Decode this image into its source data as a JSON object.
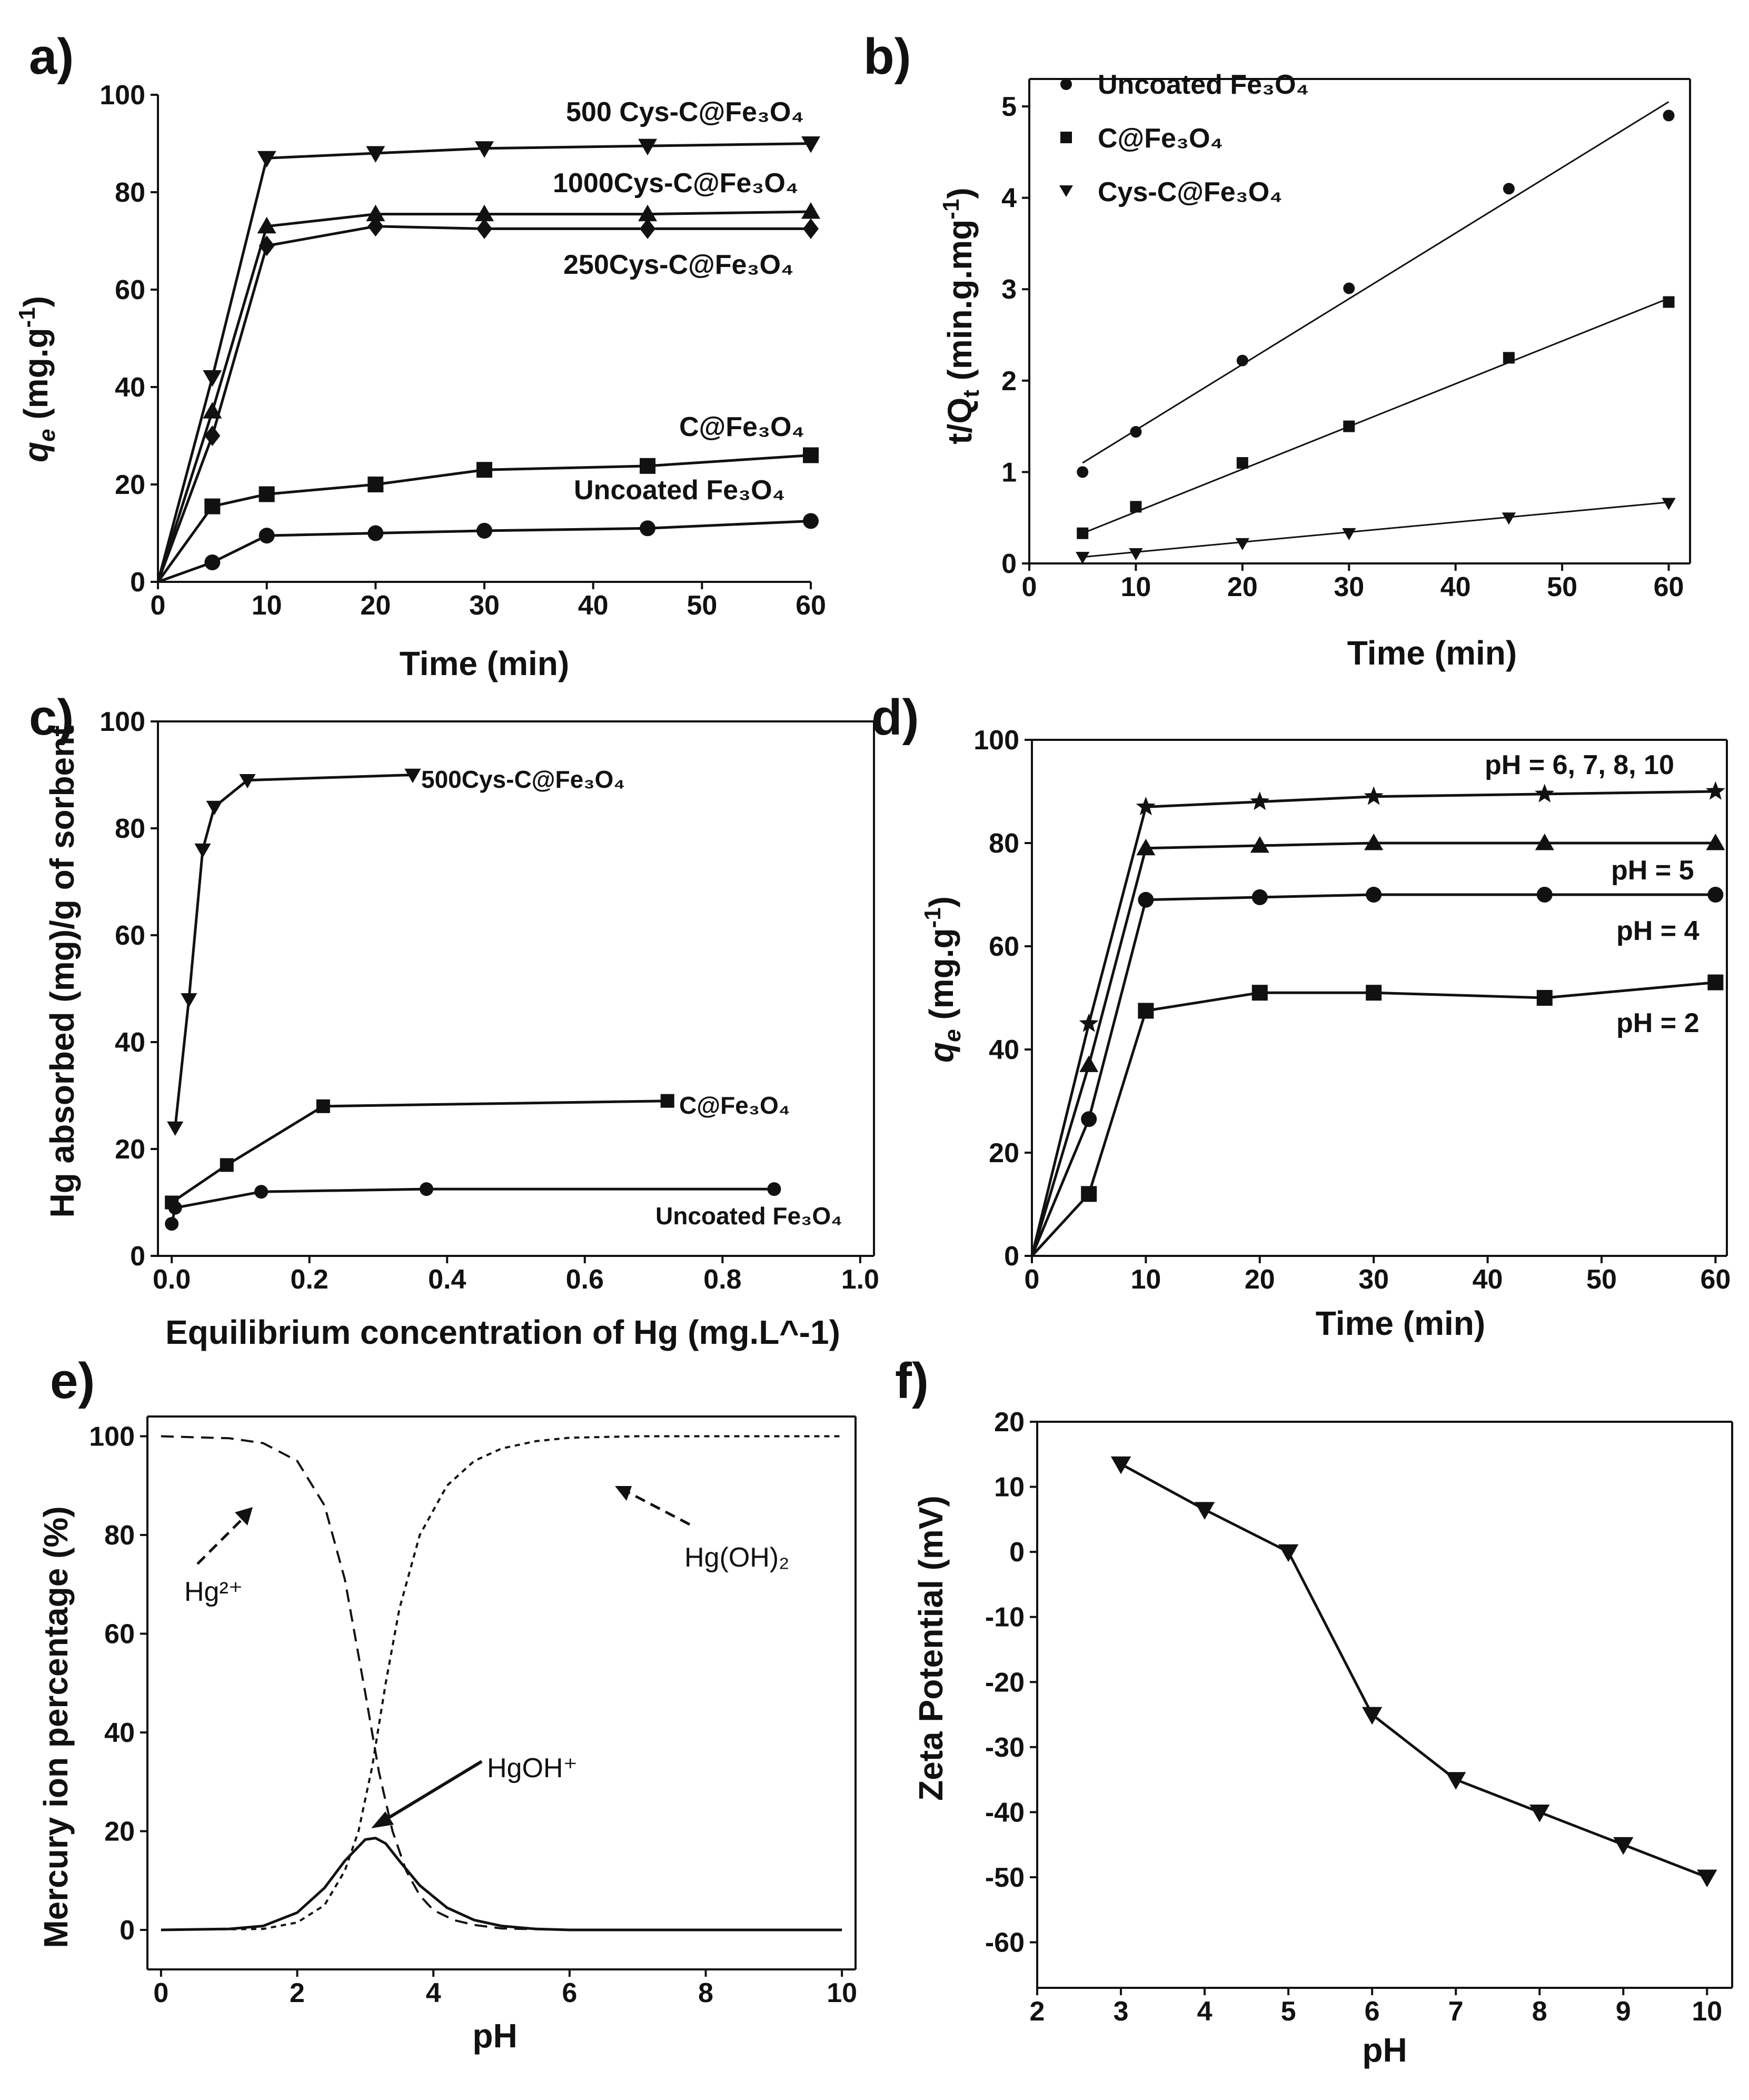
{
  "colors": {
    "background": "#ffffff",
    "ink": "#111111"
  },
  "chart_data": [
    {
      "id": "a",
      "panel_label": "a)",
      "type": "line",
      "xlabel": "Time (min)",
      "ylabel": "q_e (mg.g^-1)",
      "xlim": [
        0,
        60
      ],
      "ylim": [
        0,
        100
      ],
      "x_ticks": [
        0,
        10,
        20,
        30,
        40,
        50,
        60
      ],
      "y_ticks": [
        0,
        20,
        40,
        60,
        80,
        100
      ],
      "x": [
        0,
        5,
        10,
        20,
        30,
        45,
        60
      ],
      "series": [
        {
          "name": "500 Cys-C@Fe3O4",
          "label": "500 Cys-C@Fe₃O₄",
          "marker": "tri-down",
          "values": [
            0,
            42,
            87,
            88,
            89,
            89.5,
            90
          ]
        },
        {
          "name": "1000Cys-C@Fe3O4",
          "label": "1000Cys-C@Fe₃O₄",
          "marker": "tri-up",
          "values": [
            0,
            35,
            73,
            75.5,
            75.5,
            75.5,
            76
          ]
        },
        {
          "name": "250Cys-C@Fe3O4",
          "label": "250Cys-C@Fe₃O₄",
          "marker": "diamond",
          "values": [
            0,
            30,
            69,
            73,
            72.5,
            72.5,
            72.5
          ]
        },
        {
          "name": "C@Fe3O4",
          "label": "C@Fe₃O₄",
          "marker": "square",
          "values": [
            0,
            15.5,
            18,
            20,
            23,
            23.8,
            26
          ]
        },
        {
          "name": "Uncoated Fe3O4",
          "label": "Uncoated Fe₃O₄",
          "marker": "circle",
          "values": [
            0,
            4,
            9.5,
            10,
            10.5,
            11,
            12.5
          ]
        }
      ]
    },
    {
      "id": "b",
      "panel_label": "b)",
      "type": "scatter",
      "xlabel": "Time (min)",
      "ylabel": "t/Q_t (min.g.mg^-1)",
      "xlim": [
        0,
        62
      ],
      "ylim": [
        0,
        5.3
      ],
      "x_ticks": [
        0,
        10,
        20,
        30,
        40,
        50,
        60
      ],
      "y_ticks": [
        0,
        1,
        2,
        3,
        4,
        5
      ],
      "x": [
        5,
        10,
        20,
        30,
        45,
        60
      ],
      "legend": [
        "Uncoated Fe₃O₄",
        "C@Fe₃O₄",
        "Cys-C@Fe₃O₄"
      ],
      "series": [
        {
          "name": "Uncoated Fe3O4",
          "marker": "circle",
          "values": [
            1.0,
            1.44,
            2.22,
            3.01,
            4.1,
            4.9
          ],
          "fit": [
            [
              5,
              1.1
            ],
            [
              60,
              5.05
            ]
          ]
        },
        {
          "name": "C@Fe3O4",
          "marker": "square",
          "values": [
            0.33,
            0.62,
            1.1,
            1.5,
            2.25,
            2.86
          ],
          "fit": [
            [
              5,
              0.33
            ],
            [
              60,
              2.9
            ]
          ]
        },
        {
          "name": "Cys-C@Fe3O4",
          "marker": "tri-down",
          "values": [
            0.07,
            0.11,
            0.22,
            0.33,
            0.5,
            0.66
          ],
          "fit": [
            [
              5,
              0.07
            ],
            [
              60,
              0.67
            ]
          ]
        }
      ]
    },
    {
      "id": "c",
      "panel_label": "c)",
      "type": "line",
      "xlabel": "Equilibrium concentration of Hg (mg.L^-1)",
      "ylabel": "Hg absorbed (mg)/g of sorbent",
      "xlim": [
        -0.02,
        1.02
      ],
      "ylim": [
        0,
        100
      ],
      "x_ticks": [
        0.0,
        0.2,
        0.4,
        0.6,
        0.8,
        1.0
      ],
      "x_tick_labels": [
        "0.0",
        "0.2",
        "0.4",
        "0.6",
        "0.8",
        "1.0"
      ],
      "y_ticks": [
        0,
        20,
        40,
        60,
        80,
        100
      ],
      "series": [
        {
          "name": "500Cys-C@Fe3O4",
          "label": "500Cys-C@Fe₃O₄",
          "marker": "tri-down",
          "x": [
            0.005,
            0.025,
            0.045,
            0.062,
            0.11,
            0.35
          ],
          "values": [
            24,
            48,
            76,
            84,
            89,
            90
          ]
        },
        {
          "name": "C@Fe3O4",
          "label": "C@Fe₃O₄",
          "marker": "square",
          "x": [
            0.0,
            0.08,
            0.22,
            0.72
          ],
          "values": [
            10,
            17,
            28,
            29
          ]
        },
        {
          "name": "Uncoated Fe3O4",
          "label": "Uncoated Fe₃O₄",
          "marker": "circle",
          "x": [
            0.0,
            0.005,
            0.13,
            0.37,
            0.875
          ],
          "values": [
            6,
            9,
            12,
            12.5,
            12.5
          ]
        }
      ]
    },
    {
      "id": "d",
      "panel_label": "d)",
      "type": "line",
      "xlabel": "Time (min)",
      "ylabel": "q_e (mg.g^-1)",
      "xlim": [
        0,
        61
      ],
      "ylim": [
        0,
        100
      ],
      "x_ticks": [
        0,
        10,
        20,
        30,
        40,
        50,
        60
      ],
      "y_ticks": [
        0,
        20,
        40,
        60,
        80,
        100
      ],
      "x": [
        0,
        5,
        10,
        20,
        30,
        45,
        60
      ],
      "series": [
        {
          "name": "pH = 6, 7, 8, 10",
          "label": "pH = 6, 7, 8, 10",
          "marker": "star",
          "values": [
            0,
            45,
            87,
            88,
            89,
            89.5,
            90
          ]
        },
        {
          "name": "pH = 5",
          "label": "pH = 5",
          "marker": "tri-up",
          "values": [
            0,
            37,
            79,
            79.5,
            80,
            80,
            80
          ]
        },
        {
          "name": "pH = 4",
          "label": "pH = 4",
          "marker": "circle",
          "values": [
            0,
            26.5,
            69,
            69.5,
            70,
            70,
            70
          ]
        },
        {
          "name": "pH = 2",
          "label": "pH = 2",
          "marker": "square",
          "values": [
            0,
            12,
            47.5,
            51,
            51,
            50,
            53
          ]
        }
      ]
    },
    {
      "id": "e",
      "panel_label": "e)",
      "type": "line",
      "xlabel": "pH",
      "ylabel": "Mercury ion percentage (%)",
      "xlim": [
        -0.2,
        10.2
      ],
      "ylim": [
        -8,
        104
      ],
      "x_ticks": [
        0,
        2,
        4,
        6,
        8,
        10
      ],
      "y_ticks": [
        0,
        20,
        40,
        60,
        80,
        100
      ],
      "annotations": [
        "Hg²⁺",
        "Hg(OH)₂",
        "HgOH⁺"
      ],
      "series": [
        {
          "name": "Hg2+",
          "style": "dashed",
          "x": [
            0,
            1,
            1.5,
            2,
            2.4,
            2.7,
            3.0,
            3.2,
            3.4,
            3.6,
            3.8,
            4.0,
            4.3,
            4.6,
            5.0,
            6.0,
            8.0,
            10.0
          ],
          "values": [
            100,
            99.6,
            98.6,
            95,
            86,
            71,
            48,
            32,
            20,
            12,
            7,
            4,
            2,
            1,
            0.3,
            0,
            0,
            0
          ]
        },
        {
          "name": "Hg(OH)2",
          "style": "dotted",
          "x": [
            0,
            1.5,
            2.0,
            2.4,
            2.7,
            2.9,
            3.1,
            3.3,
            3.5,
            3.8,
            4.2,
            4.6,
            5.0,
            5.5,
            6.0,
            7.0,
            10.0
          ],
          "values": [
            0,
            0.2,
            1.5,
            5,
            12,
            20,
            33,
            50,
            65,
            80,
            90,
            95,
            97.5,
            99,
            99.7,
            100,
            100
          ]
        },
        {
          "name": "HgOH+",
          "style": "solid",
          "x": [
            0,
            1.0,
            1.5,
            2.0,
            2.4,
            2.7,
            3.0,
            3.15,
            3.3,
            3.5,
            3.8,
            4.2,
            4.6,
            5.0,
            5.5,
            6.0,
            10.0
          ],
          "values": [
            0,
            0.2,
            0.8,
            3.5,
            8.5,
            14,
            18.3,
            18.6,
            17.5,
            14,
            9,
            4.5,
            2,
            0.8,
            0.2,
            0,
            0
          ]
        }
      ]
    },
    {
      "id": "f",
      "panel_label": "f)",
      "type": "line",
      "xlabel": "pH",
      "ylabel": "Zeta Potential (mV)",
      "xlim": [
        2,
        10.3
      ],
      "ylim": [
        -67,
        20
      ],
      "x_ticks": [
        2,
        3,
        4,
        5,
        6,
        7,
        8,
        9,
        10
      ],
      "y_ticks": [
        20,
        10,
        0,
        -10,
        -20,
        -30,
        -40,
        -50,
        -60
      ],
      "series": [
        {
          "name": "Zeta Potential",
          "marker": "tri-down",
          "x": [
            3,
            4,
            5,
            6,
            7,
            8,
            9,
            10
          ],
          "values": [
            13.5,
            6.5,
            0,
            -25,
            -35,
            -40,
            -45,
            -50
          ]
        }
      ]
    }
  ]
}
